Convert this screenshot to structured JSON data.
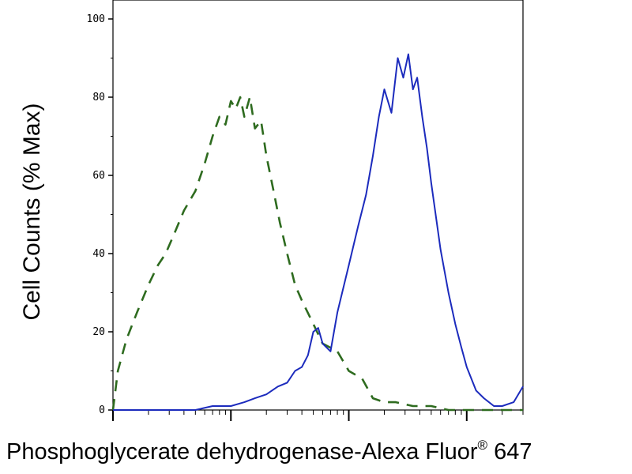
{
  "chart_data": {
    "type": "line",
    "title": "",
    "ylabel": "Cell Counts (% Max)",
    "xlabel": {
      "main": "Phosphoglycerate dehydrogenase-Alexa Fluor",
      "mark": "®",
      "suffix": " 647"
    },
    "xscale": "log",
    "xlim": [
      0.01,
      30
    ],
    "ylim": [
      0,
      100
    ],
    "yticks": [
      "0",
      "20",
      "40",
      "60",
      "80",
      "100"
    ],
    "yticks_values": [
      0,
      20,
      40,
      60,
      80,
      100
    ],
    "legend": "none",
    "grid": false,
    "series": [
      {
        "style": "dashed",
        "color": "#2e6b1f",
        "x": [
          0.01,
          0.011,
          0.013,
          0.016,
          0.02,
          0.024,
          0.028,
          0.033,
          0.04,
          0.05,
          0.06,
          0.07,
          0.08,
          0.09,
          0.1,
          0.11,
          0.12,
          0.13,
          0.145,
          0.16,
          0.18,
          0.2,
          0.23,
          0.26,
          0.3,
          0.35,
          0.4,
          0.5,
          0.6,
          0.8,
          1.0,
          1.3,
          1.6,
          2.0,
          2.5,
          3.5,
          5,
          7,
          10,
          15,
          20,
          30
        ],
        "y": [
          0,
          10,
          18,
          25,
          32,
          37,
          40,
          45,
          51,
          56,
          63,
          70,
          75,
          73,
          79,
          77,
          80,
          75,
          80,
          72,
          74,
          65,
          56,
          48,
          40,
          32,
          28,
          22,
          17,
          15,
          10,
          8,
          3,
          2,
          2,
          1,
          1,
          0,
          0,
          0,
          0,
          0
        ]
      },
      {
        "style": "solid",
        "color": "#1c2bbd",
        "x": [
          0.01,
          0.03,
          0.05,
          0.07,
          0.1,
          0.13,
          0.16,
          0.2,
          0.25,
          0.3,
          0.35,
          0.4,
          0.45,
          0.5,
          0.55,
          0.6,
          0.7,
          0.8,
          1.0,
          1.2,
          1.4,
          1.6,
          1.8,
          2.0,
          2.3,
          2.6,
          2.9,
          3.2,
          3.5,
          3.8,
          4.2,
          4.6,
          5.0,
          6.0,
          7.0,
          8.0,
          9.0,
          10,
          12,
          14,
          17,
          20,
          25,
          30
        ],
        "y": [
          0,
          0,
          0,
          1,
          1,
          2,
          3,
          4,
          6,
          7,
          10,
          11,
          14,
          20,
          21,
          17,
          15,
          25,
          37,
          47,
          55,
          65,
          75,
          82,
          76,
          90,
          85,
          91,
          82,
          85,
          75,
          67,
          58,
          41,
          30,
          22,
          16,
          11,
          5,
          3,
          1,
          1,
          2,
          6
        ]
      }
    ]
  }
}
